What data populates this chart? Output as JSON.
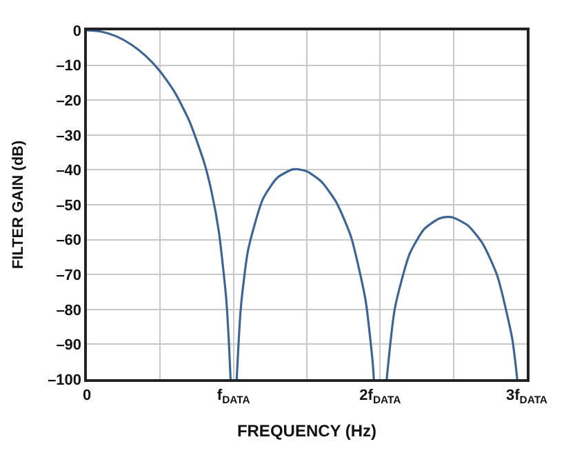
{
  "chart_data": {
    "type": "line",
    "xlabel": "FREQUENCY (Hz)",
    "ylabel": "FILTER GAIN (dB)",
    "x": [
      0,
      0.1,
      0.2,
      0.3,
      0.4,
      0.5,
      0.6,
      0.7,
      0.8,
      0.85,
      0.9,
      0.95,
      0.97,
      0.98,
      1.0,
      1.022,
      1.05,
      1.1,
      1.2,
      1.3,
      1.4,
      1.43,
      1.5,
      1.6,
      1.7,
      1.8,
      1.9,
      1.95,
      1.957,
      2.0,
      2.045,
      2.1,
      2.2,
      2.3,
      2.4,
      2.46,
      2.5,
      2.6,
      2.7,
      2.8,
      2.9,
      2.935
    ],
    "series": [
      {
        "color": "#3d6594",
        "values": [
          0,
          -0.4,
          -1.7,
          -4,
          -7.3,
          -11.8,
          -17.8,
          -26.1,
          -37.9,
          -46.2,
          -57.7,
          -76.8,
          -90.6,
          -100,
          null,
          -100,
          -79.5,
          -62.9,
          -48.4,
          -42.2,
          -39.9,
          -39.8,
          -40.4,
          -43.4,
          -49.2,
          -59,
          -77.2,
          -95.6,
          -100,
          null,
          -100,
          -79.8,
          -64.2,
          -57,
          -54,
          -53.5,
          -53.7,
          -56,
          -61.2,
          -70.5,
          -88.2,
          -100
        ]
      }
    ],
    "xlim": [
      0,
      3
    ],
    "xticks": [
      {
        "value": 0,
        "label": "0"
      },
      {
        "value": 0.5,
        "label": null
      },
      {
        "value": 1,
        "label": "f$_{DATA}$"
      },
      {
        "value": 1.5,
        "label": null
      },
      {
        "value": 2,
        "label": "2f$_{DATA}$"
      },
      {
        "value": 2.5,
        "label": null
      },
      {
        "value": 3,
        "label": "3f$_{DATA}$"
      }
    ],
    "ylim": [
      -100,
      0
    ],
    "yticks": [
      {
        "value": 0,
        "label": "0"
      },
      {
        "value": -10,
        "label": "–10"
      },
      {
        "value": -20,
        "label": "–20"
      },
      {
        "value": -30,
        "label": "–30"
      },
      {
        "value": -40,
        "label": "–40"
      },
      {
        "value": -50,
        "label": "–50"
      },
      {
        "value": -60,
        "label": "–60"
      },
      {
        "value": -70,
        "label": "–70"
      },
      {
        "value": -80,
        "label": "–80"
      },
      {
        "value": -90,
        "label": "–90"
      },
      {
        "value": -100,
        "label": "–100"
      }
    ],
    "grid": true,
    "marker": "none",
    "line_style": "solid"
  }
}
